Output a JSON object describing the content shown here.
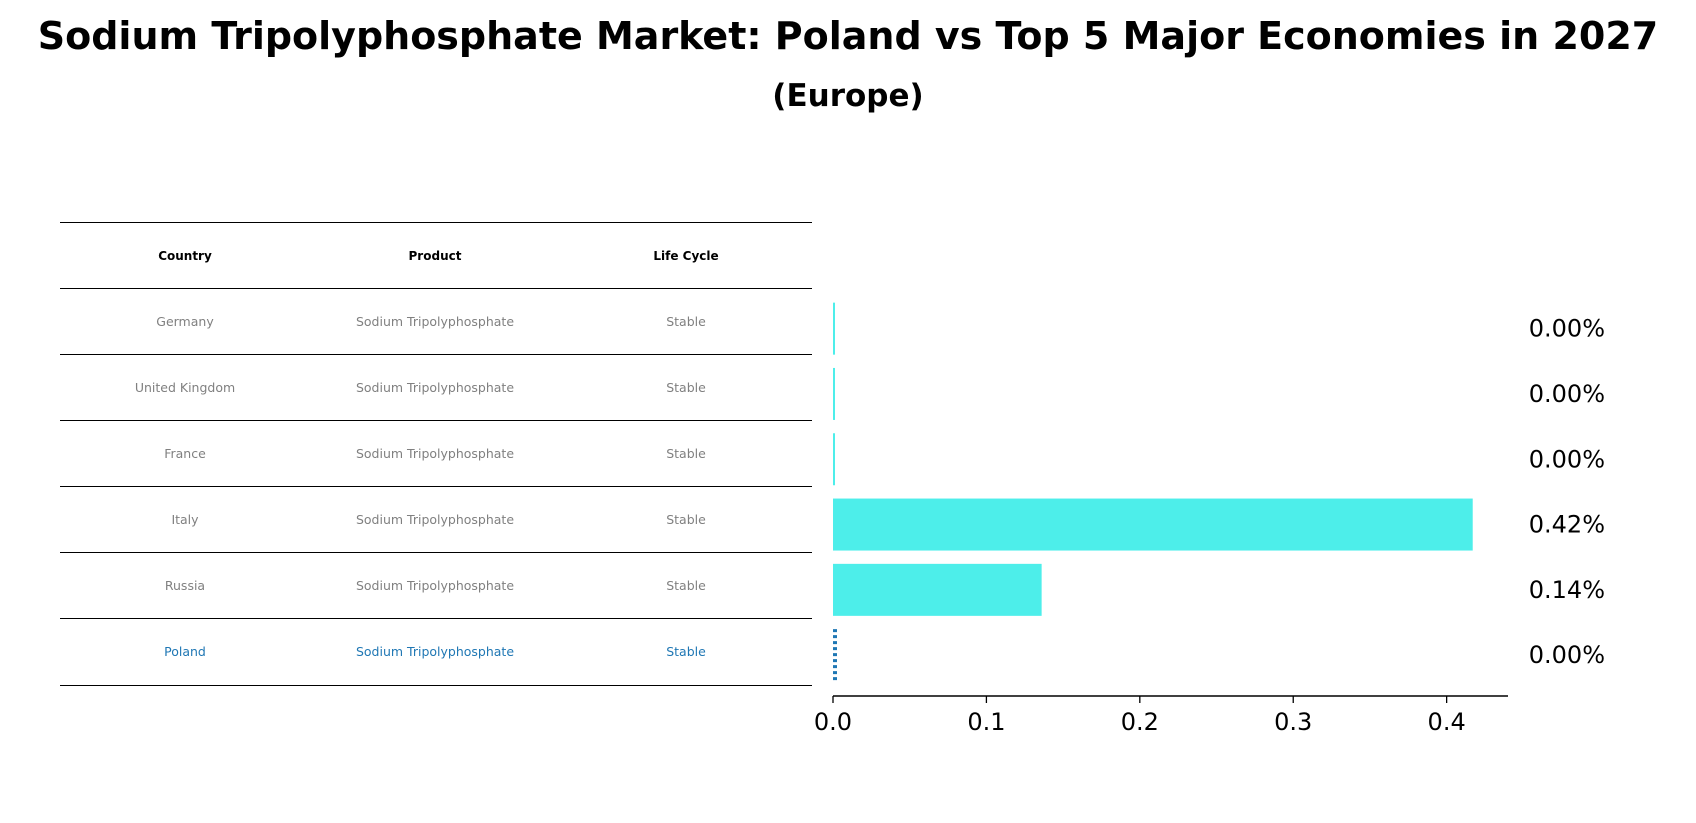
{
  "title": "Sodium Tripolyphosphate Market: Poland vs Top 5 Major Economies in 2027",
  "subtitle": "(Europe)",
  "table": {
    "headers": [
      "Country",
      "Product",
      "Life Cycle"
    ],
    "rows": [
      [
        "Germany",
        "Sodium Tripolyphosphate",
        "Stable"
      ],
      [
        "United Kingdom",
        "Sodium Tripolyphosphate",
        "Stable"
      ],
      [
        "France",
        "Sodium Tripolyphosphate",
        "Stable"
      ],
      [
        "Italy",
        "Sodium Tripolyphosphate",
        "Stable"
      ],
      [
        "Russia",
        "Sodium Tripolyphosphate",
        "Stable"
      ],
      [
        "Poland",
        "Sodium Tripolyphosphate",
        "Stable"
      ]
    ],
    "highlight_row": "Poland"
  },
  "colors": {
    "bar": "#4deeea",
    "highlight": "#1f77b4",
    "muted_text": "#808080"
  },
  "chart_data": {
    "type": "bar",
    "orientation": "horizontal",
    "categories": [
      "Germany",
      "United Kingdom",
      "France",
      "Italy",
      "Russia",
      "Poland"
    ],
    "values": [
      0.001,
      0.001,
      0.001,
      0.417,
      0.136,
      0.002
    ],
    "value_labels": [
      "0.00%",
      "0.00%",
      "0.00%",
      "0.42%",
      "0.14%",
      "0.00%"
    ],
    "xlim": [
      0,
      0.44
    ],
    "xticks": [
      0.0,
      0.1,
      0.2,
      0.3,
      0.4
    ],
    "xtick_labels": [
      "0.0",
      "0.1",
      "0.2",
      "0.3",
      "0.4"
    ],
    "xlabel": "",
    "ylabel": "",
    "grid": false,
    "highlight_category": "Poland"
  }
}
